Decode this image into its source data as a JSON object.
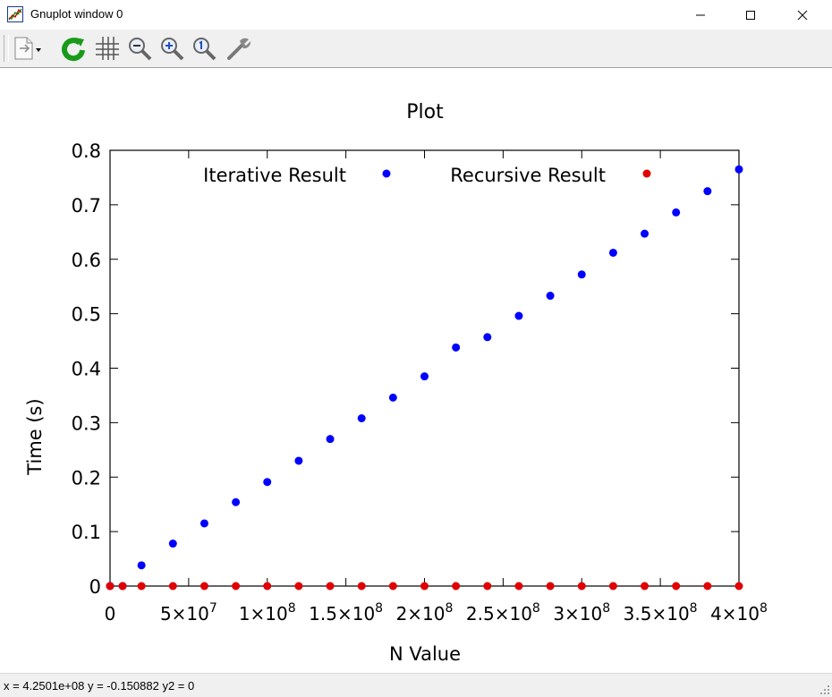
{
  "window": {
    "title": "Gnuplot window 0"
  },
  "toolbar": {
    "icons": [
      "copy-icon",
      "replot-icon",
      "grid-icon",
      "zoom-out-icon",
      "zoom-in-icon",
      "zoom-reset-icon",
      "options-icon"
    ]
  },
  "status": {
    "text": "x = 4.2501e+08 y = -0.150882 y2 = 0"
  },
  "chart_data": {
    "type": "scatter",
    "title": "Plot",
    "xlabel": "N Value",
    "ylabel": "Time (s)",
    "xlim": [
      0,
      400000000
    ],
    "ylim": [
      0,
      0.8
    ],
    "x_ticks": [
      {
        "value": 0,
        "mant": "0",
        "exp": ""
      },
      {
        "value": 50000000,
        "mant": "5×10",
        "exp": "7"
      },
      {
        "value": 100000000,
        "mant": "1×10",
        "exp": "8"
      },
      {
        "value": 150000000,
        "mant": "1.5×10",
        "exp": "8"
      },
      {
        "value": 200000000,
        "mant": "2×10",
        "exp": "8"
      },
      {
        "value": 250000000,
        "mant": "2.5×10",
        "exp": "8"
      },
      {
        "value": 300000000,
        "mant": "3×10",
        "exp": "8"
      },
      {
        "value": 350000000,
        "mant": "3.5×10",
        "exp": "8"
      },
      {
        "value": 400000000,
        "mant": "4×10",
        "exp": "8"
      }
    ],
    "y_ticks": [
      {
        "value": 0,
        "label": "0"
      },
      {
        "value": 0.1,
        "label": "0.1"
      },
      {
        "value": 0.2,
        "label": "0.2"
      },
      {
        "value": 0.3,
        "label": "0.3"
      },
      {
        "value": 0.4,
        "label": "0.4"
      },
      {
        "value": 0.5,
        "label": "0.5"
      },
      {
        "value": 0.6,
        "label": "0.6"
      },
      {
        "value": 0.7,
        "label": "0.7"
      },
      {
        "value": 0.8,
        "label": "0.8"
      }
    ],
    "legend": "top-center",
    "grid": false,
    "series": [
      {
        "name": "Iterative Result",
        "color": "#0000ff",
        "points": [
          [
            0,
            0
          ],
          [
            8000000,
            0
          ],
          [
            20000000,
            0.038
          ],
          [
            40000000,
            0.078
          ],
          [
            60000000,
            0.115
          ],
          [
            80000000,
            0.154
          ],
          [
            100000000,
            0.191
          ],
          [
            120000000,
            0.23
          ],
          [
            140000000,
            0.27
          ],
          [
            160000000,
            0.308
          ],
          [
            180000000,
            0.346
          ],
          [
            200000000,
            0.385
          ],
          [
            220000000,
            0.438
          ],
          [
            240000000,
            0.457
          ],
          [
            260000000,
            0.496
          ],
          [
            280000000,
            0.533
          ],
          [
            300000000,
            0.572
          ],
          [
            320000000,
            0.612
          ],
          [
            340000000,
            0.647
          ],
          [
            360000000,
            0.686
          ],
          [
            380000000,
            0.725
          ],
          [
            400000000,
            0.765
          ]
        ]
      },
      {
        "name": "Recursive Result",
        "color": "#e00000",
        "points": [
          [
            0,
            0
          ],
          [
            8000000,
            0
          ],
          [
            20000000,
            0
          ],
          [
            40000000,
            0
          ],
          [
            60000000,
            0
          ],
          [
            80000000,
            0
          ],
          [
            100000000,
            0
          ],
          [
            120000000,
            0
          ],
          [
            140000000,
            0
          ],
          [
            160000000,
            0
          ],
          [
            180000000,
            0
          ],
          [
            200000000,
            0
          ],
          [
            220000000,
            0
          ],
          [
            240000000,
            0
          ],
          [
            260000000,
            0
          ],
          [
            280000000,
            0
          ],
          [
            300000000,
            0
          ],
          [
            320000000,
            0
          ],
          [
            340000000,
            0
          ],
          [
            360000000,
            0
          ],
          [
            380000000,
            0
          ],
          [
            400000000,
            0
          ]
        ]
      }
    ]
  }
}
